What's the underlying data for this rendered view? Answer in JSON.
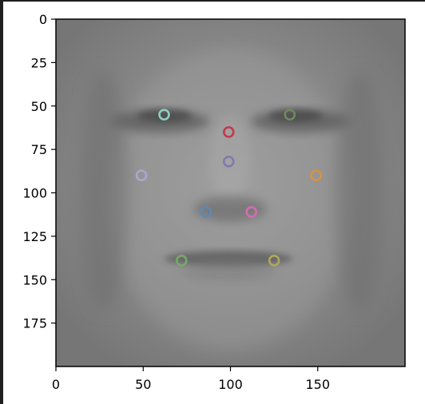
{
  "chart_data": {
    "type": "scatter",
    "title": "",
    "xlabel": "",
    "ylabel": "",
    "background_image": "grayscale average face",
    "xlim": [
      0,
      200
    ],
    "ylim": [
      200,
      0
    ],
    "y_inverted": true,
    "grid": false,
    "xticks": [
      0,
      50,
      100,
      150
    ],
    "yticks": [
      0,
      25,
      50,
      75,
      100,
      125,
      150,
      175
    ],
    "marker": "hollow-circle",
    "points": [
      {
        "x": 62,
        "y": 55,
        "color": "#8fd1c3"
      },
      {
        "x": 134,
        "y": 55,
        "color": "#6e8a5e"
      },
      {
        "x": 99,
        "y": 65,
        "color": "#c0394b"
      },
      {
        "x": 99,
        "y": 82,
        "color": "#8478ad"
      },
      {
        "x": 49,
        "y": 90,
        "color": "#a8a8d0"
      },
      {
        "x": 149,
        "y": 90,
        "color": "#d9913f"
      },
      {
        "x": 86,
        "y": 111,
        "color": "#5d88b7"
      },
      {
        "x": 112,
        "y": 111,
        "color": "#d76ab4"
      },
      {
        "x": 72,
        "y": 139,
        "color": "#78a86a"
      },
      {
        "x": 125,
        "y": 139,
        "color": "#b0a65c"
      }
    ]
  }
}
